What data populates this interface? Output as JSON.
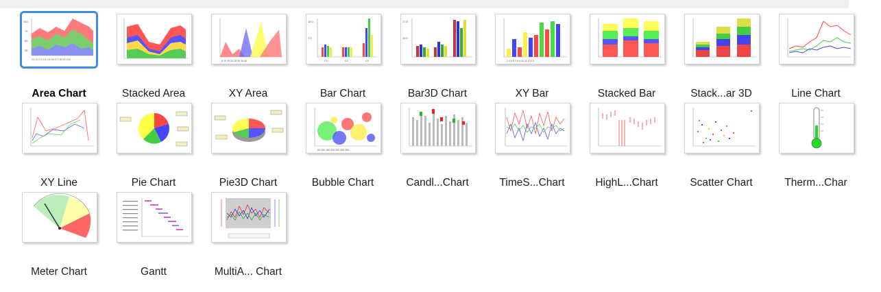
{
  "gallery": {
    "items": [
      {
        "label": "Area Chart",
        "selected": true
      },
      {
        "label": "Stacked Area"
      },
      {
        "label": "XY Area"
      },
      {
        "label": "Bar Chart"
      },
      {
        "label": "Bar3D Chart"
      },
      {
        "label": "XY Bar"
      },
      {
        "label": "Stacked Bar"
      },
      {
        "label": "Stack...ar 3D"
      },
      {
        "label": "Line Chart"
      },
      {
        "label": "XY Line"
      },
      {
        "label": "Pie Chart"
      },
      {
        "label": "Pie3D Chart"
      },
      {
        "label": "Bubble Chart"
      },
      {
        "label": "Candl...Chart"
      },
      {
        "label": "TimeS...Chart"
      },
      {
        "label": "HighL...Chart"
      },
      {
        "label": "Scatter Chart"
      },
      {
        "label": "Therm...Char"
      },
      {
        "label": "Meter Chart"
      },
      {
        "label": "Gantt"
      },
      {
        "label": "MultiA... Chart"
      }
    ],
    "selection_color": "#3a8ee6",
    "series_colors": [
      "#ff5555",
      "#5555ff",
      "#55dd55",
      "#ffff55"
    ]
  }
}
